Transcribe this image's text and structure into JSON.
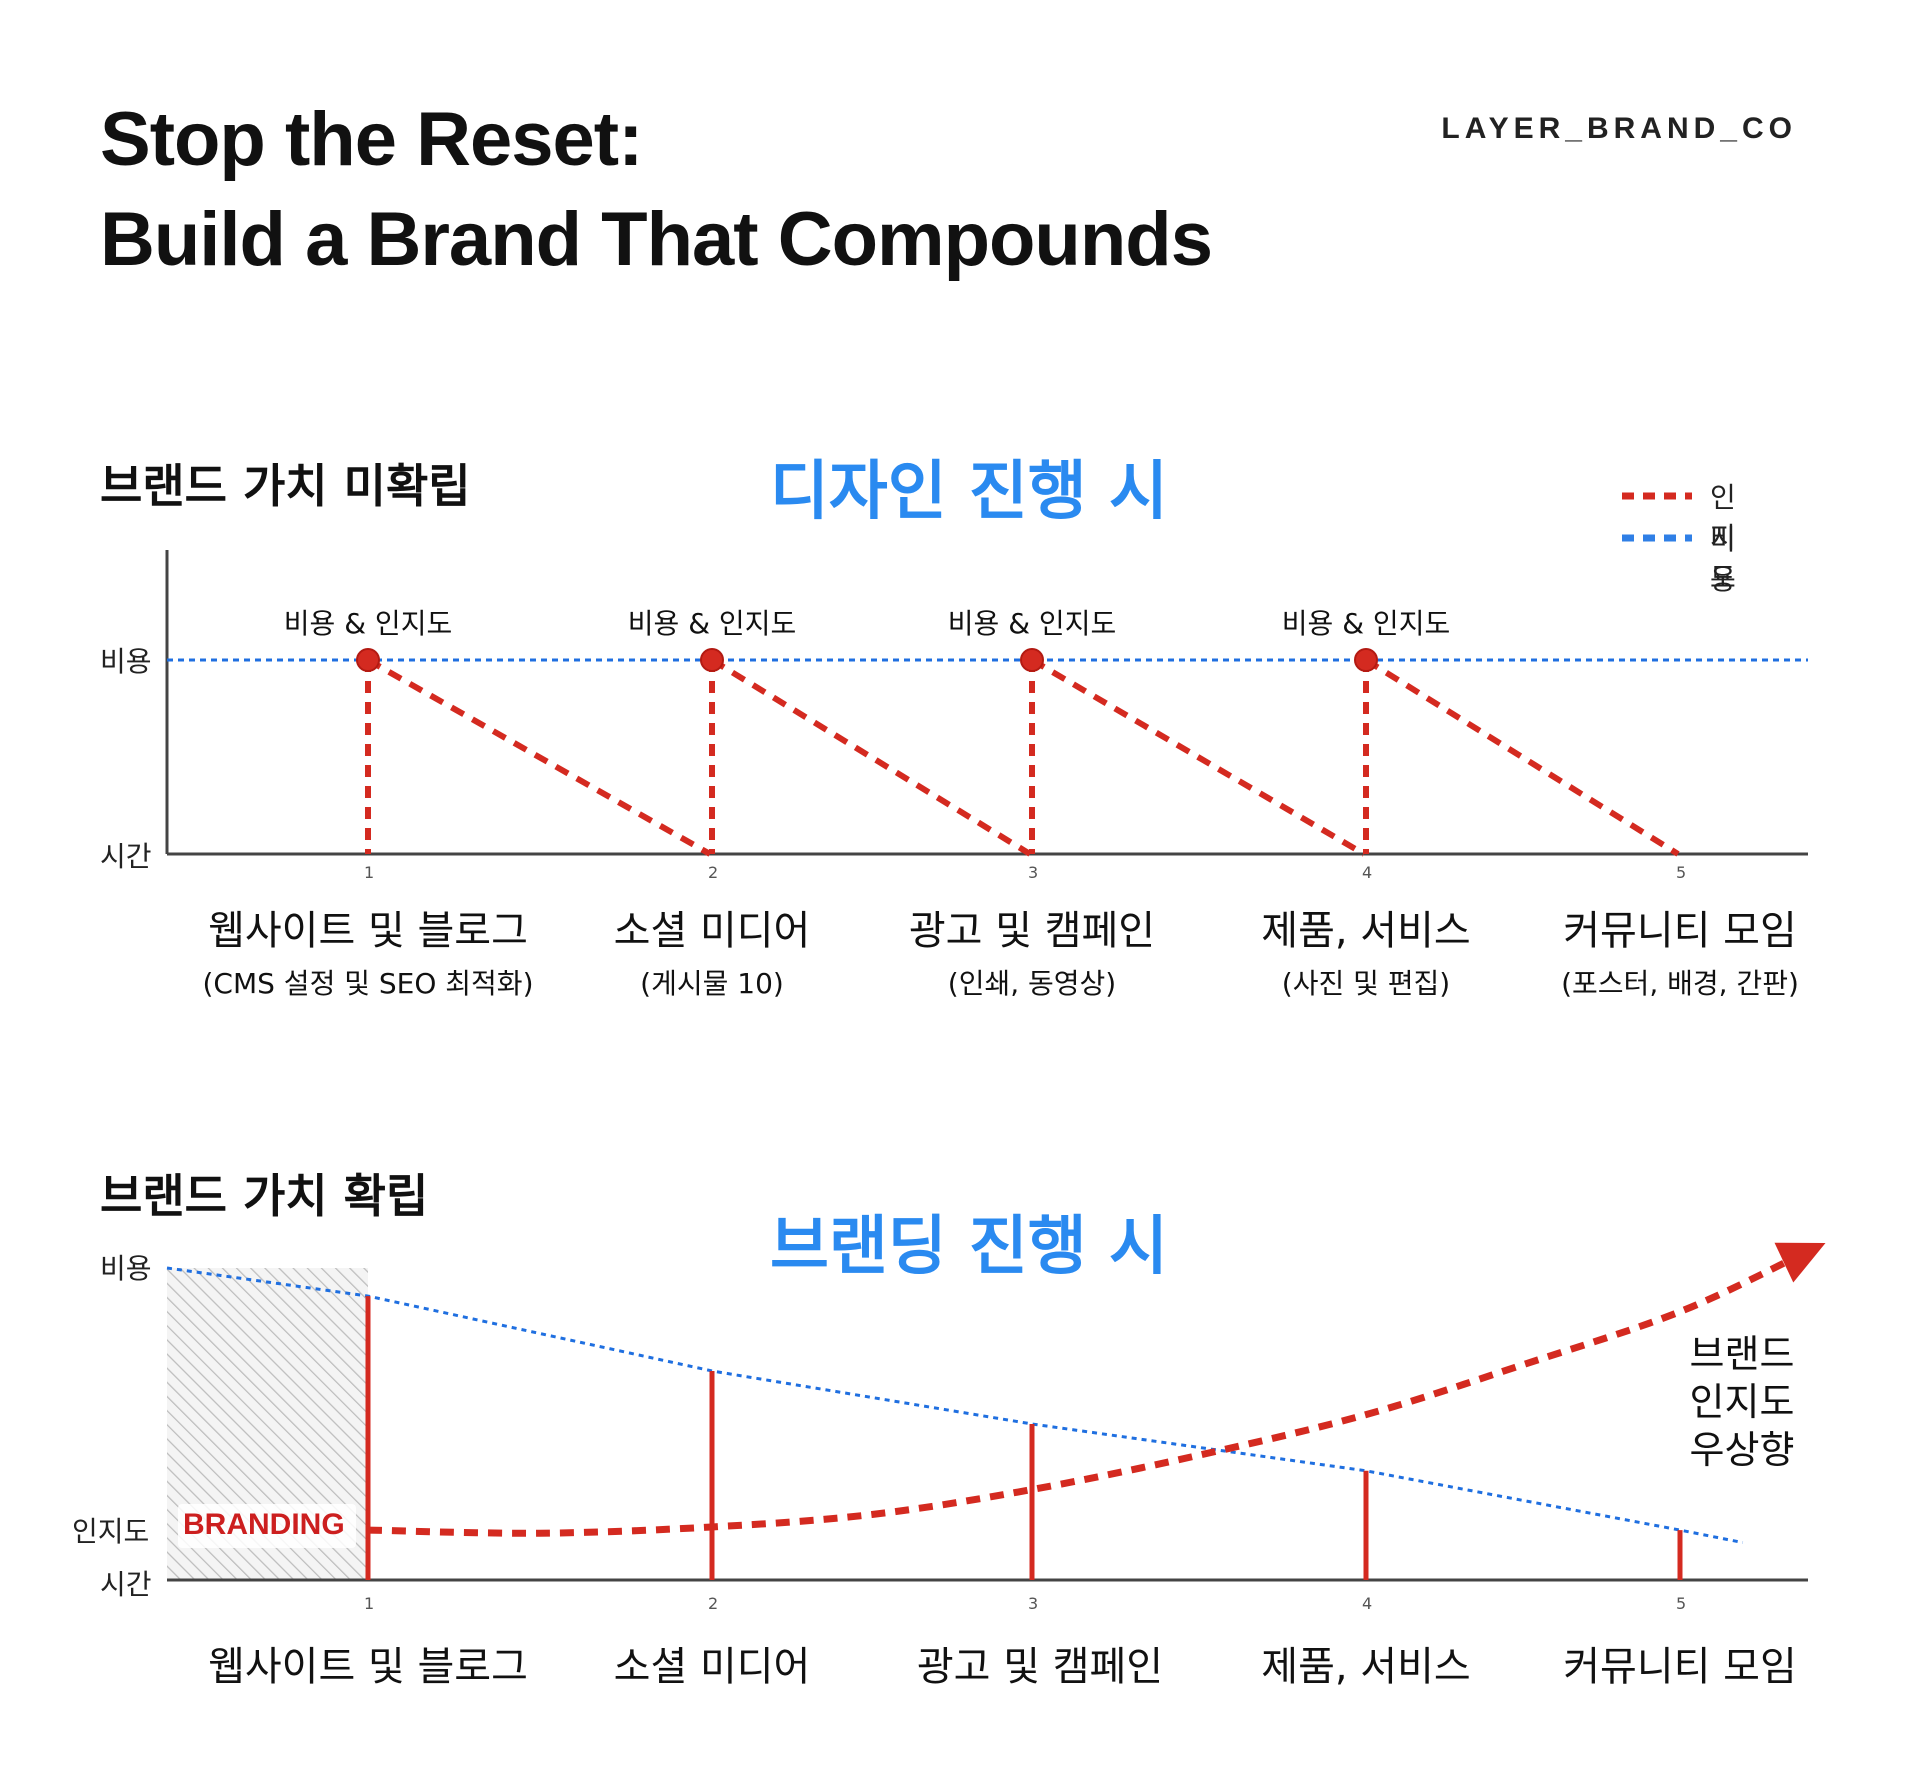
{
  "header": {
    "title_line1": "Stop the Reset:",
    "title_line2": "Build a Brand That Compounds",
    "brand": "LAYER_BRAND_CO"
  },
  "colors": {
    "red": "#d42a20",
    "blue": "#1f6fe0",
    "title_blue": "#2a8af0"
  },
  "chart_data": [
    {
      "type": "line",
      "section_label": "브랜드 가치 미확립",
      "title": "디자인 진행 시",
      "ylabel_top": "비용",
      "ylabel_bottom": "시간",
      "x_ticks": [
        "1",
        "2",
        "3",
        "4",
        "5"
      ],
      "categories": [
        "웹사이트 및 블로그",
        "소셜 미디어",
        "광고 및 캠페인",
        "제품, 서비스",
        "커뮤니티 모임"
      ],
      "subcategories": [
        "(CMS 설정 및 SEO 최적화)",
        "(게시물 10)",
        "(인쇄, 동영상)",
        "(사진 및 편집)",
        "(포스터, 배경, 간판)"
      ],
      "point_annotation": "비용 & 인지도",
      "legend": [
        {
          "label": "인지도",
          "color": "#d42a20"
        },
        {
          "label": "비용",
          "color": "#2f7fe6"
        }
      ],
      "legend_position": "top-right",
      "series": [
        {
          "name": "비용",
          "values": [
            1,
            1,
            1,
            1,
            1
          ]
        },
        {
          "name": "인지도",
          "resets": [
            {
              "start_x": 1,
              "start_y": 1,
              "end_x": 2,
              "end_y": 0
            },
            {
              "start_x": 2,
              "start_y": 1,
              "end_x": 3,
              "end_y": 0
            },
            {
              "start_x": 3,
              "start_y": 1,
              "end_x": 4,
              "end_y": 0
            },
            {
              "start_x": 4,
              "start_y": 1,
              "end_x": 5,
              "end_y": 0
            }
          ]
        }
      ],
      "ylim": [
        0,
        1
      ]
    },
    {
      "type": "line",
      "section_label": "브랜드 가치 확립",
      "title": "브랜딩 진행 시",
      "ylabel_top": "비용",
      "ylabel_mid": "인지도",
      "ylabel_bottom": "시간",
      "x_ticks": [
        "1",
        "2",
        "3",
        "4",
        "5"
      ],
      "categories": [
        "웹사이트 및 블로그",
        "소셜 미디어",
        "광고 및 캠페인",
        "제품, 서비스",
        "커뮤니티 모임"
      ],
      "shaded_label": "BRANDING",
      "rising_label": [
        "브랜드",
        "인지도",
        "우상향"
      ],
      "series": [
        {
          "name": "비용",
          "x": [
            0.4,
            1,
            2,
            3,
            4,
            5,
            5.2
          ],
          "values": [
            1.0,
            0.91,
            0.67,
            0.5,
            0.35,
            0.16,
            0.12
          ]
        },
        {
          "name": "인지도",
          "x": [
            1,
            1.5,
            2,
            2.5,
            3,
            3.5,
            4,
            4.5,
            5,
            5.4
          ],
          "values": [
            0.16,
            0.15,
            0.17,
            0.21,
            0.29,
            0.4,
            0.53,
            0.69,
            0.86,
            1.05
          ]
        }
      ],
      "bars": [
        1,
        2,
        3,
        4,
        5
      ],
      "ylim": [
        0,
        1
      ]
    }
  ]
}
